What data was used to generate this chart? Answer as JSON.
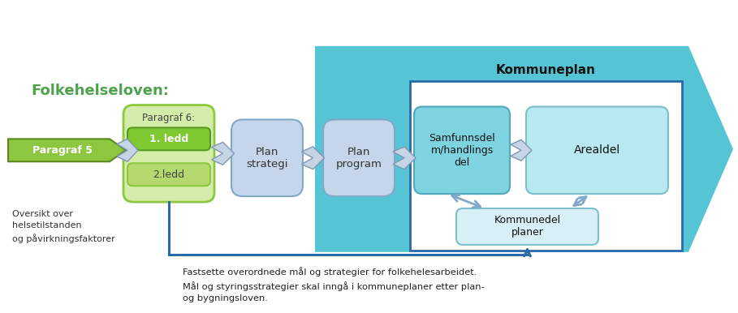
{
  "title": "Folkehelseloven:",
  "kommuneplan_label": "Kommuneplan",
  "par5_label": "Paragraf 5",
  "par6_label": "Paragraf 6:",
  "ledd1_label": "1. ledd",
  "ledd2_label": "2.ledd",
  "plan_strategi_label": "Plan\nstrategi",
  "plan_program_label": "Plan\nprogram",
  "samfunnsdel_label": "Samfunnsdel\nm/handlings\ndel",
  "arealdel_label": "Arealdel",
  "kommunedel_label": "Kommunedel\nplaner",
  "oversikt_label": "Oversikt over\nhelsetilstanden\nog påvirkningsfaktorer",
  "footer_label": "Fastsette overordnede mål og strategier for folkehelesarbeidet.\nMål og styringsstrategier skal inngå i kommuneplaner etter plan-\nog bygningsloven.",
  "bg_color": "#ffffff",
  "arrow_bg_color": "#55c5d5",
  "title_color": "#4ea24e",
  "par5_fill": "#8dc63f",
  "par5_edge": "#5a8a1e",
  "par6_fill": "#d4edaa",
  "par6_edge": "#8dc63f",
  "ledd1_fill": "#7ec832",
  "ledd1_edge": "#5a9a20",
  "ledd2_fill": "#b5d96e",
  "ledd2_edge": "#8dc63f",
  "plan_fill": "#c5d5ea",
  "plan_edge": "#7fa8c9",
  "sd_fill": "#7dd4e0",
  "sd_edge": "#50aabc",
  "ad_fill": "#b8e8f0",
  "ad_edge": "#7abfcc",
  "kd_fill": "#d8f0f5",
  "kd_edge": "#7abfcc",
  "kp_box_edge": "#2a6aaa",
  "kp_box_fill": "#ffffff",
  "connector_color": "#7fa8c9",
  "blue_line_color": "#2a6aaa",
  "footer_color": "#222222",
  "fat_arrow_color": "#7abfcc"
}
